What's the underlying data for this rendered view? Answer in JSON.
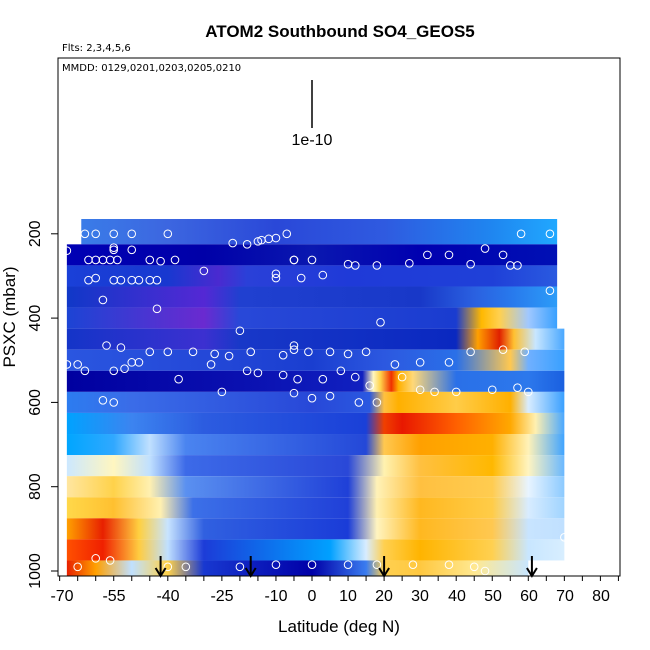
{
  "chart_data": {
    "type": "heatmap",
    "title": "ATOM2 Southbound SO4_GEOS5",
    "subtitle_flights": "Flts: 2,3,4,5,6",
    "subtitle_dates": "MMDD: 0129,0201,0203,0205,0210",
    "scale_label": "1e-10",
    "xlabel": "Latitude (deg N)",
    "ylabel": "PSXC (mbar)",
    "xlim": [
      -70,
      85
    ],
    "ylim": [
      1000,
      0
    ],
    "x_ticks": [
      -70,
      -55,
      -40,
      -25,
      -10,
      0,
      10,
      20,
      30,
      40,
      50,
      60,
      70,
      80
    ],
    "x_tick_labels": [
      "-70",
      "-55",
      "-40",
      "-25",
      "-10",
      "0",
      "10",
      "20",
      "30",
      "40",
      "50",
      "60",
      "70",
      "80"
    ],
    "y_ticks": [
      1000,
      800,
      600,
      400,
      200
    ],
    "y_tick_labels": [
      "1000",
      "800",
      "600",
      "400",
      "200"
    ],
    "arrow_latitudes": [
      -42,
      -17,
      20,
      61
    ],
    "colors": {
      "navy": "#0000a8",
      "blue": "#1f40e0",
      "midblue": "#3c6cf2",
      "sky": "#00a6ff",
      "pale": "#c8e6ff",
      "cream": "#fff6c0",
      "yellow": "#ffd24a",
      "orange": "#ffa000",
      "red": "#f03000",
      "darkred": "#b00000",
      "purple": "#6a2ad0"
    },
    "bands": [
      {
        "p": 200,
        "x": [
          -64,
          68
        ],
        "stops": [
          [
            -64,
            "#3a7ce8"
          ],
          [
            -40,
            "#3c66e0"
          ],
          [
            -10,
            "#2a48d8"
          ],
          [
            20,
            "#2f5ae0"
          ],
          [
            50,
            "#1f86f0"
          ],
          [
            68,
            "#20a8ff"
          ]
        ]
      },
      {
        "p": 250,
        "x": [
          -68,
          68
        ],
        "stops": [
          [
            -68,
            "#0000b4"
          ],
          [
            -30,
            "#0000a8"
          ],
          [
            0,
            "#0a18b0"
          ],
          [
            30,
            "#0000b0"
          ],
          [
            68,
            "#0010b4"
          ]
        ]
      },
      {
        "p": 300,
        "x": [
          -68,
          68
        ],
        "stops": [
          [
            -68,
            "#1a40d8"
          ],
          [
            -40,
            "#1838d0"
          ],
          [
            -26,
            "#4a2ad0"
          ],
          [
            -18,
            "#2a40d8"
          ],
          [
            10,
            "#1f3ad8"
          ],
          [
            50,
            "#1f40d8"
          ],
          [
            68,
            "#2a5ae0"
          ]
        ]
      },
      {
        "p": 350,
        "x": [
          -68,
          68
        ],
        "stops": [
          [
            -68,
            "#1038c8"
          ],
          [
            -30,
            "#5428d4"
          ],
          [
            -20,
            "#2040d0"
          ],
          [
            30,
            "#1838c8"
          ],
          [
            45,
            "#2a60e0"
          ],
          [
            55,
            "#2878ec"
          ],
          [
            68,
            "#2c9cf8"
          ]
        ]
      },
      {
        "p": 400,
        "x": [
          -68,
          68
        ],
        "stops": [
          [
            -68,
            "#1c44d4"
          ],
          [
            -30,
            "#6a2ad0"
          ],
          [
            -20,
            "#2848d8"
          ],
          [
            40,
            "#1a3cd0"
          ],
          [
            47,
            "#ffb800"
          ],
          [
            52,
            "#ffd050"
          ],
          [
            60,
            "#a0c8ff"
          ],
          [
            68,
            "#38a0ff"
          ]
        ]
      },
      {
        "p": 450,
        "x": [
          -68,
          70
        ],
        "stops": [
          [
            -68,
            "#1434c8"
          ],
          [
            -30,
            "#3c30d0"
          ],
          [
            -20,
            "#1838c8"
          ],
          [
            40,
            "#0a28c0"
          ],
          [
            46,
            "#ffa000"
          ],
          [
            52,
            "#e02000"
          ],
          [
            56,
            "#ffc030"
          ],
          [
            62,
            "#c8e6ff"
          ],
          [
            70,
            "#4aa8ff"
          ]
        ]
      },
      {
        "p": 500,
        "x": [
          -68,
          70
        ],
        "stops": [
          [
            -68,
            "#2a56e0"
          ],
          [
            -30,
            "#2448d8"
          ],
          [
            0,
            "#1a3ed0"
          ],
          [
            20,
            "#2c58e0"
          ],
          [
            40,
            "#2a70e8"
          ],
          [
            55,
            "#ffc850"
          ],
          [
            60,
            "#70b0ff"
          ],
          [
            70,
            "#38a0ff"
          ]
        ]
      },
      {
        "p": 550,
        "x": [
          -68,
          70
        ],
        "stops": [
          [
            -68,
            "#0000a0"
          ],
          [
            -20,
            "#0a10b0"
          ],
          [
            14,
            "#1020c0"
          ],
          [
            17,
            "#fff6c0"
          ],
          [
            19,
            "#ffd24a"
          ],
          [
            22,
            "#f03000"
          ],
          [
            24,
            "#ffb000"
          ],
          [
            28,
            "#ffd878"
          ],
          [
            40,
            "#2a70e8"
          ],
          [
            60,
            "#2c78ec"
          ],
          [
            70,
            "#1a60e0"
          ]
        ]
      },
      {
        "p": 600,
        "x": [
          -68,
          70
        ],
        "stops": [
          [
            -68,
            "#2c7cf0"
          ],
          [
            -50,
            "#3a6ce8"
          ],
          [
            0,
            "#2848d8"
          ],
          [
            16,
            "#2a58e0"
          ],
          [
            20,
            "#ffc040"
          ],
          [
            24,
            "#ffb000"
          ],
          [
            40,
            "#ffcc48"
          ],
          [
            55,
            "#ffb000"
          ],
          [
            60,
            "#d8ecff"
          ],
          [
            70,
            "#3aa0ff"
          ]
        ]
      },
      {
        "p": 650,
        "x": [
          -68,
          70
        ],
        "stops": [
          [
            -68,
            "#00a2ff"
          ],
          [
            -50,
            "#3c84f0"
          ],
          [
            -30,
            "#2c5ce0"
          ],
          [
            15,
            "#1a40d8"
          ],
          [
            20,
            "#f04000"
          ],
          [
            25,
            "#e81800"
          ],
          [
            40,
            "#ff6000"
          ],
          [
            55,
            "#ffa800"
          ],
          [
            62,
            "#fff0b0"
          ],
          [
            70,
            "#4aa8ff"
          ]
        ]
      },
      {
        "p": 700,
        "x": [
          -68,
          70
        ],
        "stops": [
          [
            -68,
            "#00a6ff"
          ],
          [
            -55,
            "#30a8ff"
          ],
          [
            -45,
            "#c0e0ff"
          ],
          [
            -35,
            "#4a84f0"
          ],
          [
            15,
            "#2448d8"
          ],
          [
            20,
            "#ffc850"
          ],
          [
            30,
            "#ffa000"
          ],
          [
            50,
            "#ffb000"
          ],
          [
            60,
            "#fff2b8"
          ],
          [
            70,
            "#40a4ff"
          ]
        ]
      },
      {
        "p": 750,
        "x": [
          -68,
          70
        ],
        "stops": [
          [
            -68,
            "#cce8ff"
          ],
          [
            -55,
            "#fff6c0"
          ],
          [
            -45,
            "#c0e0ff"
          ],
          [
            -35,
            "#3c6ae8"
          ],
          [
            10,
            "#2a48d8"
          ],
          [
            20,
            "#fff2b0"
          ],
          [
            30,
            "#ffc040"
          ],
          [
            50,
            "#ffb800"
          ],
          [
            60,
            "#fff4c0"
          ],
          [
            70,
            "#6ab8ff"
          ]
        ]
      },
      {
        "p": 800,
        "x": [
          -68,
          70
        ],
        "stops": [
          [
            -68,
            "#ffe6a0"
          ],
          [
            -55,
            "#ffd24a"
          ],
          [
            -45,
            "#fff0b0"
          ],
          [
            -35,
            "#5a90f0"
          ],
          [
            10,
            "#1f40d8"
          ],
          [
            18,
            "#fff2b8"
          ],
          [
            30,
            "#ffc040"
          ],
          [
            50,
            "#ffcc50"
          ],
          [
            60,
            "#e8f4ff"
          ],
          [
            70,
            "#8ccaff"
          ]
        ]
      },
      {
        "p": 850,
        "x": [
          -68,
          70
        ],
        "stops": [
          [
            -68,
            "#ffd84a"
          ],
          [
            -55,
            "#ffc030"
          ],
          [
            -42,
            "#fff0b0"
          ],
          [
            -33,
            "#3c70e8"
          ],
          [
            10,
            "#2040d8"
          ],
          [
            18,
            "#fff0b0"
          ],
          [
            30,
            "#ffb820"
          ],
          [
            50,
            "#ffcc48"
          ],
          [
            60,
            "#d8ecff"
          ],
          [
            70,
            "#a0d4ff"
          ]
        ]
      },
      {
        "p": 900,
        "x": [
          -68,
          70
        ],
        "stops": [
          [
            -68,
            "#ffa000"
          ],
          [
            -58,
            "#e82000"
          ],
          [
            -48,
            "#ffd040"
          ],
          [
            -40,
            "#c8e4ff"
          ],
          [
            -30,
            "#3060e0"
          ],
          [
            10,
            "#1a3cd8"
          ],
          [
            18,
            "#fff4c0"
          ],
          [
            30,
            "#ffb820"
          ],
          [
            50,
            "#ffc850"
          ],
          [
            60,
            "#c8e4ff"
          ],
          [
            70,
            "#c0e0ff"
          ]
        ]
      },
      {
        "p": 950,
        "x": [
          -68,
          70
        ],
        "stops": [
          [
            -68,
            "#ff5000"
          ],
          [
            -58,
            "#f02000"
          ],
          [
            -48,
            "#ffcc40"
          ],
          [
            -40,
            "#c0e0ff"
          ],
          [
            -30,
            "#1c3cd8"
          ],
          [
            5,
            "#00a0ff"
          ],
          [
            15,
            "#d8ecff"
          ],
          [
            20,
            "#ffd050"
          ],
          [
            30,
            "#ffb400"
          ],
          [
            50,
            "#ffd050"
          ],
          [
            60,
            "#c8e6ff"
          ],
          [
            70,
            "#d8eeff"
          ]
        ]
      },
      {
        "p": 1000,
        "x": [
          -68,
          60
        ],
        "stops": [
          [
            -68,
            "#e82000"
          ],
          [
            -60,
            "#ffa000"
          ],
          [
            -50,
            "#c0e0ff"
          ],
          [
            -40,
            "#ffd24a"
          ],
          [
            -30,
            "#1838d0"
          ],
          [
            0,
            "#0000a8"
          ],
          [
            15,
            "#3a7cf0"
          ],
          [
            20,
            "#ffd050"
          ],
          [
            30,
            "#ffc840"
          ],
          [
            45,
            "#ffe890"
          ],
          [
            60,
            "#c8e6ff"
          ]
        ]
      }
    ],
    "points": [
      [
        -63,
        200
      ],
      [
        -60,
        200
      ],
      [
        -55,
        200
      ],
      [
        -50,
        200
      ],
      [
        -40,
        200
      ],
      [
        -7,
        200
      ],
      [
        -10,
        210
      ],
      [
        -12,
        212
      ],
      [
        -14,
        215
      ],
      [
        -15,
        218
      ],
      [
        -18,
        225
      ],
      [
        -22,
        222
      ],
      [
        58,
        200
      ],
      [
        66,
        200
      ],
      [
        -68,
        240
      ],
      [
        -55,
        233
      ],
      [
        -55,
        238
      ],
      [
        -50,
        238
      ],
      [
        -45,
        262
      ],
      [
        -42,
        265
      ],
      [
        -62,
        262
      ],
      [
        -60,
        262
      ],
      [
        -58,
        262
      ],
      [
        -56,
        262
      ],
      [
        -54,
        262
      ],
      [
        -38,
        262
      ],
      [
        0,
        262
      ],
      [
        -5,
        262
      ],
      [
        10,
        272
      ],
      [
        12,
        275
      ],
      [
        18,
        275
      ],
      [
        27,
        270
      ],
      [
        32,
        250
      ],
      [
        38,
        250
      ],
      [
        44,
        272
      ],
      [
        48,
        235
      ],
      [
        53,
        250
      ],
      [
        55,
        275
      ],
      [
        57,
        275
      ],
      [
        -30,
        288
      ],
      [
        -10,
        295
      ],
      [
        3,
        298
      ],
      [
        -62,
        310
      ],
      [
        -55,
        310
      ],
      [
        -53,
        310
      ],
      [
        -50,
        310
      ],
      [
        -48,
        310
      ],
      [
        -45,
        310
      ],
      [
        -43,
        310
      ],
      [
        -60,
        305
      ],
      [
        -10,
        305
      ],
      [
        -3,
        305
      ],
      [
        -5,
        262
      ],
      [
        -58,
        357
      ],
      [
        -43,
        378
      ],
      [
        19,
        410
      ],
      [
        66,
        335
      ],
      [
        -20,
        430
      ],
      [
        -5,
        465
      ],
      [
        -5,
        475
      ],
      [
        -65,
        510
      ],
      [
        -50,
        505
      ],
      [
        -45,
        480
      ],
      [
        -33,
        480
      ],
      [
        -27,
        485
      ],
      [
        -23,
        490
      ],
      [
        -17,
        480
      ],
      [
        -8,
        488
      ],
      [
        -1,
        480
      ],
      [
        5,
        480
      ],
      [
        10,
        485
      ],
      [
        15,
        480
      ],
      [
        23,
        510
      ],
      [
        30,
        505
      ],
      [
        38,
        505
      ],
      [
        44,
        480
      ],
      [
        53,
        475
      ],
      [
        59,
        480
      ],
      [
        -57,
        465
      ],
      [
        -53,
        470
      ],
      [
        -68,
        510
      ],
      [
        -63,
        525
      ],
      [
        -55,
        525
      ],
      [
        -52,
        520
      ],
      [
        -48,
        505
      ],
      [
        -40,
        480
      ],
      [
        -37,
        545
      ],
      [
        -28,
        510
      ],
      [
        -18,
        525
      ],
      [
        -15,
        530
      ],
      [
        -8,
        535
      ],
      [
        -4,
        545
      ],
      [
        3,
        545
      ],
      [
        8,
        525
      ],
      [
        12,
        540
      ],
      [
        16,
        560
      ],
      [
        25,
        540
      ],
      [
        30,
        570
      ],
      [
        34,
        575
      ],
      [
        40,
        575
      ],
      [
        50,
        570
      ],
      [
        57,
        565
      ],
      [
        60,
        575
      ],
      [
        -58,
        595
      ],
      [
        -55,
        600
      ],
      [
        -25,
        575
      ],
      [
        -5,
        578
      ],
      [
        0,
        590
      ],
      [
        5,
        585
      ],
      [
        13,
        600
      ],
      [
        18,
        600
      ],
      [
        -60,
        970
      ],
      [
        -56,
        975
      ],
      [
        -40,
        990
      ],
      [
        -35,
        990
      ],
      [
        -20,
        990
      ],
      [
        -10,
        985
      ],
      [
        0,
        985
      ],
      [
        10,
        985
      ],
      [
        18,
        985
      ],
      [
        28,
        985
      ],
      [
        38,
        985
      ],
      [
        45,
        990
      ],
      [
        48,
        1000
      ],
      [
        70,
        920
      ],
      [
        -65,
        990
      ]
    ]
  }
}
